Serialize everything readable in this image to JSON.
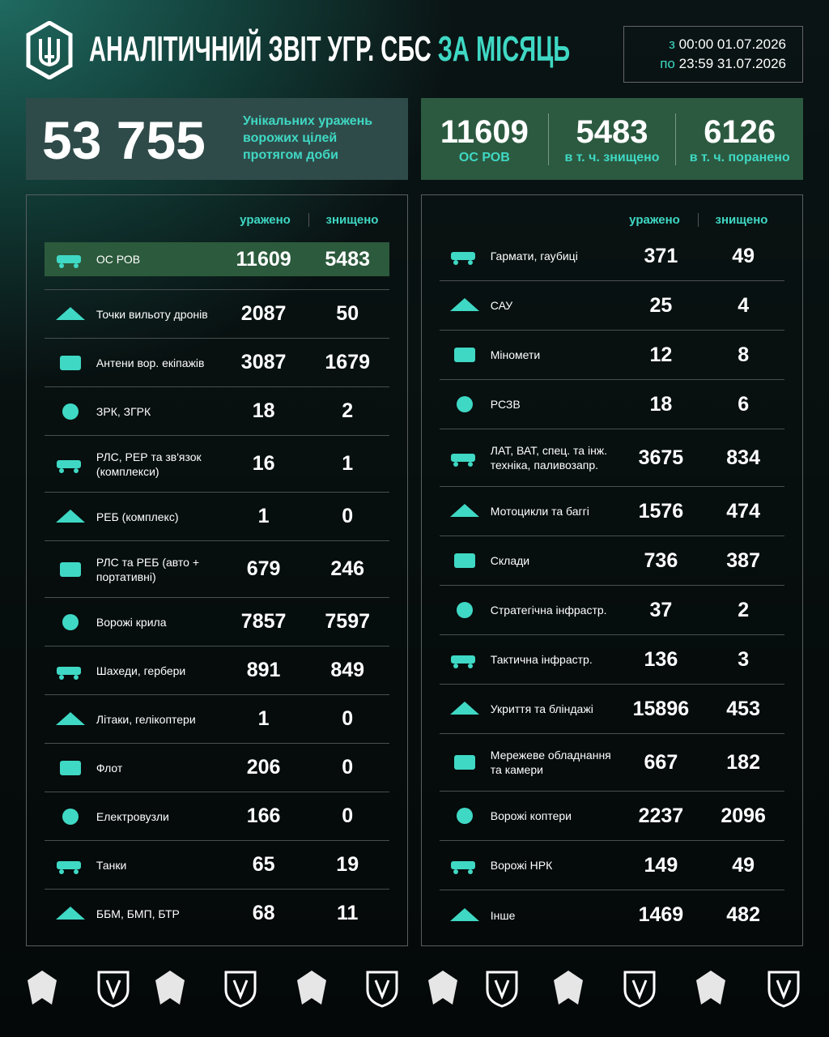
{
  "header": {
    "title_main": "АНАЛІТИЧНИЙ ЗВІТ УГР. СБС",
    "title_accent": "ЗА МІСЯЦЬ",
    "period": [
      {
        "prefix": "з",
        "time": "00:00",
        "date": "01.07.2026"
      },
      {
        "prefix": "по",
        "time": "23:59",
        "date": "31.07.2026"
      }
    ]
  },
  "summary": {
    "total": "53 755",
    "description": "Унікальних уражень ворожих цілей протягом доби"
  },
  "stats": [
    {
      "value": 11609,
      "label": "ОС РОВ"
    },
    {
      "value": 5483,
      "label": "в т. ч. знищено"
    },
    {
      "value": 6126,
      "label": "в т. ч. поранено"
    }
  ],
  "left_table": {
    "columns": [
      "уражено",
      "знищено"
    ],
    "rows": [
      {
        "label": "ОС РОВ",
        "hit": 11609,
        "destroyed": 5483
      },
      {
        "label": "Точки вильоту дронів",
        "hit": 2087,
        "destroyed": 50
      },
      {
        "label": "Антени вор. екіпажів",
        "hit": 3087,
        "destroyed": 1679
      },
      {
        "label": "ЗРК, ЗГРК",
        "hit": 18,
        "destroyed": 2
      },
      {
        "label": "РЛС, РЕР та зв'язок (комплекси)",
        "hit": 16,
        "destroyed": 1
      },
      {
        "label": "РЕБ (комплекс)",
        "hit": 1,
        "destroyed": 0
      },
      {
        "label": "РЛС та РЕБ (авто + портативні)",
        "hit": 679,
        "destroyed": 246
      },
      {
        "label": "Ворожі крила",
        "hit": 7857,
        "destroyed": 7597
      },
      {
        "label": "Шахеди, гербери",
        "hit": 891,
        "destroyed": 849
      },
      {
        "label": "Літаки, гелікоптери",
        "hit": 1,
        "destroyed": 0
      },
      {
        "label": "Флот",
        "hit": 206,
        "destroyed": 0
      },
      {
        "label": "Електровузли",
        "hit": 166,
        "destroyed": 0
      },
      {
        "label": "Танки",
        "hit": 65,
        "destroyed": 19
      },
      {
        "label": "ББМ, БМП, БТР",
        "hit": 68,
        "destroyed": 11
      }
    ]
  },
  "right_table": {
    "columns": [
      "уражено",
      "знищено"
    ],
    "rows": [
      {
        "label": "Гармати, гаубиці",
        "hit": 371,
        "destroyed": 49
      },
      {
        "label": "САУ",
        "hit": 25,
        "destroyed": 4
      },
      {
        "label": "Міномети",
        "hit": 12,
        "destroyed": 8
      },
      {
        "label": "РСЗВ",
        "hit": 18,
        "destroyed": 6
      },
      {
        "label": "ЛАТ, ВАТ, спец. та інж. техніка, паливозапр.",
        "hit": 3675,
        "destroyed": 834
      },
      {
        "label": "Мотоцикли та баггі",
        "hit": 1576,
        "destroyed": 474
      },
      {
        "label": "Склади",
        "hit": 736,
        "destroyed": 387
      },
      {
        "label": "Стратегічна інфрастр.",
        "hit": 37,
        "destroyed": 2
      },
      {
        "label": "Тактична інфрастр.",
        "hit": 136,
        "destroyed": 3
      },
      {
        "label": "Укриття та бліндажі",
        "hit": 15896,
        "destroyed": 453
      },
      {
        "label": "Мережеве обладнання та камери",
        "hit": 667,
        "destroyed": 182
      },
      {
        "label": "Ворожі коптери",
        "hit": 2237,
        "destroyed": 2096
      },
      {
        "label": "Ворожі НРК",
        "hit": 149,
        "destroyed": 49
      },
      {
        "label": "Інше",
        "hit": 1469,
        "destroyed": 482
      }
    ]
  }
}
